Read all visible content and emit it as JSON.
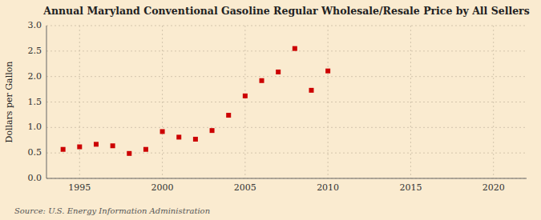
{
  "chart_data": {
    "type": "scatter",
    "title": "Annual Maryland Conventional Gasoline Regular Wholesale/Resale Price by All Sellers",
    "ylabel": "Dollars per Gallon",
    "source": "Source: U.S. Energy Information Administration",
    "x": [
      1994,
      1995,
      1996,
      1997,
      1998,
      1999,
      2000,
      2001,
      2002,
      2003,
      2004,
      2005,
      2006,
      2007,
      2008,
      2009,
      2010
    ],
    "values": [
      0.57,
      0.62,
      0.67,
      0.64,
      0.49,
      0.57,
      0.92,
      0.81,
      0.77,
      0.94,
      1.24,
      1.62,
      1.92,
      2.09,
      2.55,
      1.73,
      2.11
    ],
    "color": "#cc0000",
    "marker": "square",
    "xlim": [
      1993,
      2022
    ],
    "ylim": [
      0.0,
      3.0
    ],
    "xticks": [
      1995,
      2000,
      2005,
      2010,
      2015,
      2020
    ],
    "yticks": [
      {
        "value": 0.0,
        "label": "0.0"
      },
      0.5,
      {
        "value": 1.0,
        "label": "1.0"
      },
      1.5,
      {
        "value": 2.0,
        "label": "2.0"
      },
      2.5,
      {
        "value": 3.0,
        "label": "3.0"
      }
    ],
    "grid": true
  }
}
